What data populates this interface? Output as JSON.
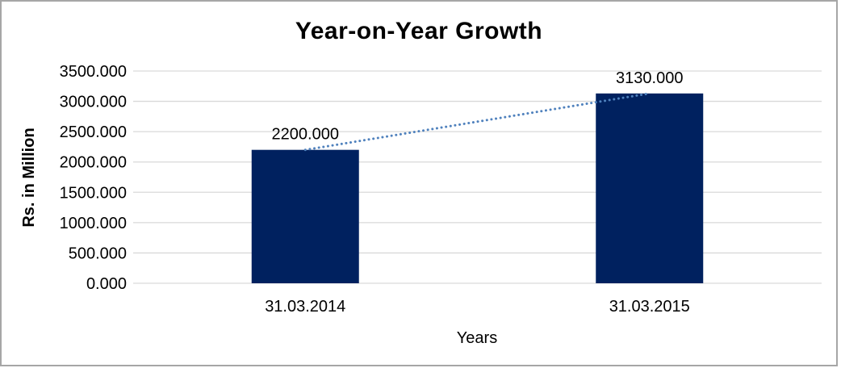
{
  "chart_data": {
    "type": "bar",
    "title": "Year-on-Year Growth",
    "xlabel": "Years",
    "ylabel": "Rs. in Million",
    "categories": [
      "31.03.2014",
      "31.03.2015"
    ],
    "values": [
      2200,
      3130
    ],
    "value_labels": [
      "2200.000",
      "3130.000"
    ],
    "ylim": [
      0,
      3500
    ],
    "ytick_step": 500,
    "ytick_labels": [
      "0.000",
      "500.000",
      "1000.000",
      "1500.000",
      "2000.000",
      "2500.000",
      "3000.000",
      "3500.000"
    ],
    "grid": "horizontal",
    "legend": "none",
    "trendline": {
      "style": "dotted",
      "connects": [
        "31.03.2014",
        "31.03.2015"
      ],
      "color": "#4F81BD"
    },
    "colors": {
      "bar": "#00215F",
      "gridline": "#D9D9D9",
      "text": "#000000",
      "frame_border": "#A6A6A6",
      "background": "#FFFFFF"
    }
  }
}
